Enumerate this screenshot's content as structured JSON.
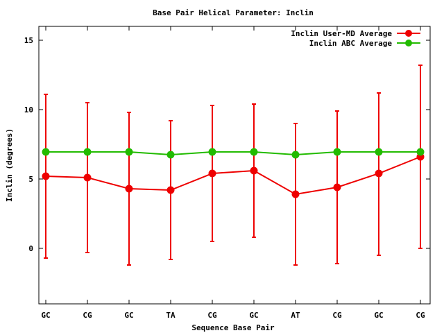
{
  "chart_data": {
    "type": "line",
    "title": "Base Pair Helical Parameter: Inclin",
    "xlabel": "Sequence Base Pair",
    "ylabel": "Inclin (degrees)",
    "categories": [
      "GC",
      "CG",
      "GC",
      "TA",
      "CG",
      "GC",
      "AT",
      "CG",
      "GC",
      "CG"
    ],
    "ylim": [
      -4,
      16
    ],
    "yticks": [
      0,
      5,
      10,
      15
    ],
    "grid": false,
    "legend_position": "top-right",
    "series": [
      {
        "name": "Inclin User-MD Average",
        "color": "#ee0000",
        "values": [
          5.2,
          5.1,
          4.3,
          4.2,
          5.4,
          5.6,
          3.9,
          4.4,
          5.4,
          6.6
        ],
        "error_low": [
          -0.7,
          -0.3,
          -1.2,
          -0.8,
          0.5,
          0.8,
          -1.2,
          -1.1,
          -0.5,
          0.0
        ],
        "error_high": [
          11.1,
          10.5,
          9.8,
          9.2,
          10.3,
          10.4,
          9.0,
          9.9,
          11.2,
          13.2
        ]
      },
      {
        "name": "Inclin ABC Average",
        "color": "#22bb00",
        "values": [
          6.95,
          6.95,
          6.95,
          6.75,
          6.95,
          6.95,
          6.75,
          6.95,
          6.95,
          6.95
        ]
      }
    ]
  }
}
